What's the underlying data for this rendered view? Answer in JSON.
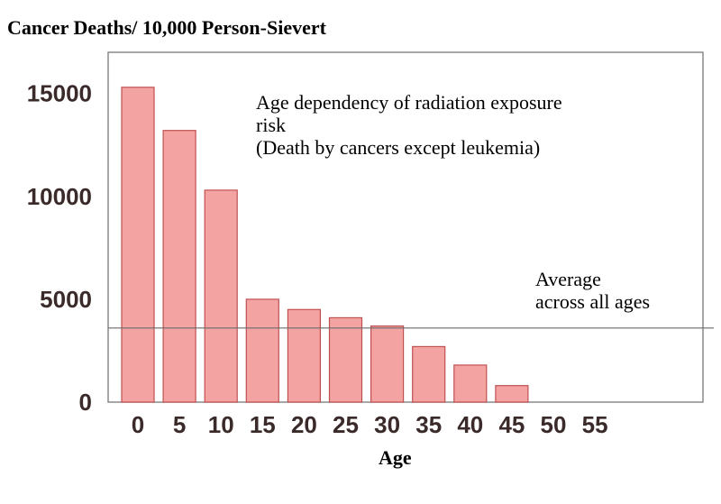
{
  "chart_data": {
    "type": "bar",
    "title": "Cancer Deaths/ 10,000 Person-Sievert",
    "xlabel": "Age",
    "ylabel": "",
    "categories": [
      "0",
      "5",
      "10",
      "15",
      "20",
      "25",
      "30",
      "35",
      "40",
      "45",
      "50",
      "55"
    ],
    "values": [
      15300,
      13200,
      10300,
      5000,
      4500,
      4100,
      3700,
      2700,
      1800,
      800,
      0,
      0
    ],
    "ylim": [
      0,
      17000
    ],
    "yticks": [
      "0",
      "5000",
      "10000",
      "15000"
    ],
    "grid": false,
    "bar_color": "#f4a3a3",
    "bar_edge_color": "#c05050",
    "reference_line": {
      "value": 3600,
      "label_lines": [
        "Average",
        "across all ages"
      ]
    },
    "annotation_lines": [
      "Age dependency of radiation exposure",
      "risk",
      "(Death by cancers except leukemia)"
    ]
  }
}
